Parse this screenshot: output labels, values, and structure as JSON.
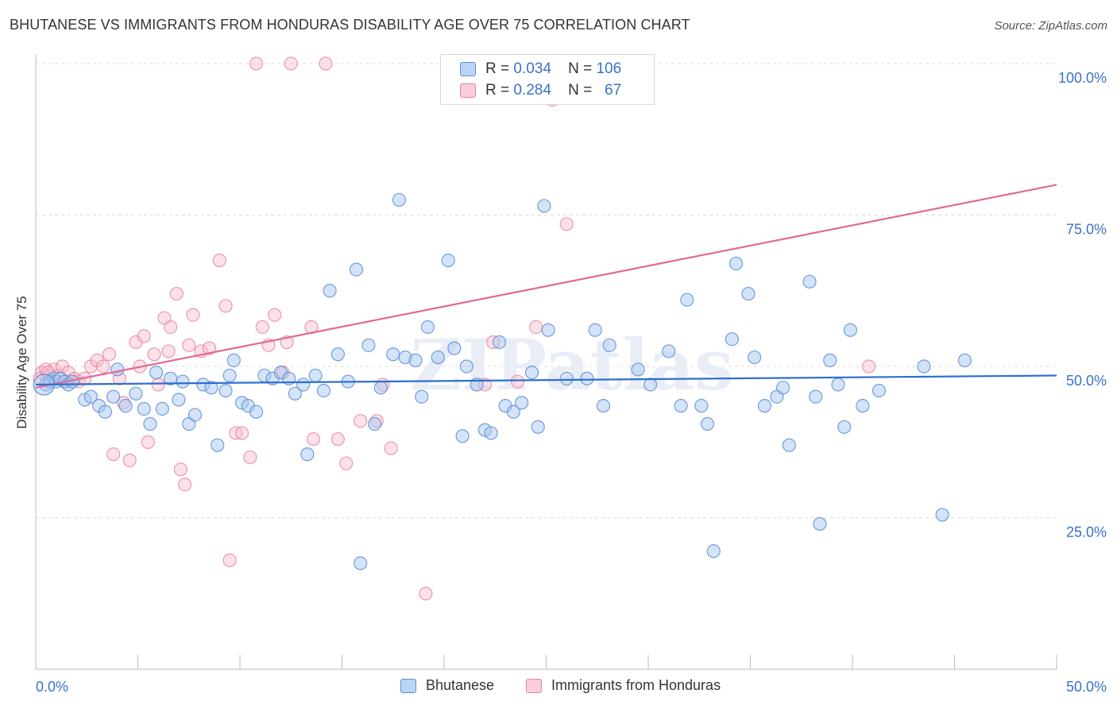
{
  "header": {
    "title": "BHUTANESE VS IMMIGRANTS FROM HONDURAS DISABILITY AGE OVER 75 CORRELATION CHART",
    "source": "Source: ZipAtlas.com"
  },
  "watermark": "ZIPatlas",
  "stats_legend": {
    "rows": [
      {
        "r_label": "R =",
        "r_value": "0.034",
        "n_label": "N =",
        "n_value": "106"
      },
      {
        "r_label": "R =",
        "r_value": "0.284",
        "n_label": "N =",
        "n_value": "67"
      }
    ]
  },
  "colors": {
    "blue_fill": "#a9c8ef",
    "blue_stroke": "#5b8fd6",
    "blue_line": "#2f6fce",
    "pink_fill": "#f6bccd",
    "pink_stroke": "#e7829f",
    "pink_line": "#e06a95",
    "axis_label_blue": "#3a72c8",
    "grid": "#dcdcdc"
  },
  "chart_data": {
    "type": "scatter",
    "title": "BHUTANESE VS IMMIGRANTS FROM HONDURAS DISABILITY AGE OVER 75 CORRELATION CHART",
    "xlabel": "",
    "ylabel": "Disability Age Over 75",
    "xlim": [
      0,
      50
    ],
    "ylim": [
      0,
      100
    ],
    "x_tick_labels": [
      "0.0%",
      "50.0%"
    ],
    "y_tick_labels": [
      "25.0%",
      "50.0%",
      "75.0%",
      "100.0%"
    ],
    "y_ticks": [
      25,
      50,
      75,
      100
    ],
    "grid": true,
    "legend_position": "bottom",
    "series": [
      {
        "name": "Bhutanese",
        "color": "#5b8fd6",
        "trend": {
          "x": [
            0,
            50
          ],
          "y": [
            47.0,
            48.5
          ]
        },
        "points": [
          [
            0.5,
            47.0
          ],
          [
            0.7,
            47.5
          ],
          [
            0.9,
            48.0
          ],
          [
            1.0,
            47.5
          ],
          [
            1.2,
            48.0
          ],
          [
            1.4,
            47.5
          ],
          [
            1.6,
            47.0
          ],
          [
            1.8,
            47.5
          ],
          [
            2.4,
            44.5
          ],
          [
            2.7,
            45.0
          ],
          [
            3.1,
            43.5
          ],
          [
            3.4,
            42.5
          ],
          [
            3.8,
            45.0
          ],
          [
            4.0,
            49.5
          ],
          [
            4.4,
            43.5
          ],
          [
            4.9,
            45.5
          ],
          [
            5.3,
            43.0
          ],
          [
            5.6,
            40.5
          ],
          [
            5.9,
            49.0
          ],
          [
            6.2,
            43.0
          ],
          [
            6.6,
            48.0
          ],
          [
            7.0,
            44.5
          ],
          [
            7.2,
            47.5
          ],
          [
            7.5,
            40.5
          ],
          [
            7.8,
            42.0
          ],
          [
            8.2,
            47.0
          ],
          [
            8.6,
            46.5
          ],
          [
            8.9,
            37.0
          ],
          [
            9.3,
            46.0
          ],
          [
            9.5,
            48.5
          ],
          [
            9.7,
            51.0
          ],
          [
            10.1,
            44.0
          ],
          [
            10.4,
            43.5
          ],
          [
            10.8,
            42.5
          ],
          [
            11.2,
            48.5
          ],
          [
            11.6,
            48.0
          ],
          [
            12.0,
            49.0
          ],
          [
            12.4,
            48.0
          ],
          [
            12.7,
            45.5
          ],
          [
            13.1,
            47.0
          ],
          [
            13.3,
            35.5
          ],
          [
            13.7,
            48.5
          ],
          [
            14.1,
            46.0
          ],
          [
            14.4,
            62.5
          ],
          [
            14.8,
            52.0
          ],
          [
            15.3,
            47.5
          ],
          [
            15.7,
            66.0
          ],
          [
            15.9,
            17.5
          ],
          [
            16.3,
            53.5
          ],
          [
            16.6,
            40.5
          ],
          [
            16.9,
            46.5
          ],
          [
            17.5,
            52.0
          ],
          [
            17.8,
            77.5
          ],
          [
            18.1,
            51.5
          ],
          [
            18.6,
            51.0
          ],
          [
            18.9,
            45.0
          ],
          [
            19.2,
            56.5
          ],
          [
            19.7,
            51.5
          ],
          [
            20.2,
            67.5
          ],
          [
            20.5,
            53.0
          ],
          [
            20.9,
            38.5
          ],
          [
            21.1,
            50.0
          ],
          [
            21.6,
            47.0
          ],
          [
            22.0,
            39.5
          ],
          [
            22.3,
            39.0
          ],
          [
            22.7,
            54.0
          ],
          [
            23.0,
            43.5
          ],
          [
            23.4,
            42.5
          ],
          [
            23.8,
            44.0
          ],
          [
            24.3,
            49.0
          ],
          [
            24.6,
            40.0
          ],
          [
            24.9,
            76.5
          ],
          [
            25.1,
            56.0
          ],
          [
            26.0,
            48.0
          ],
          [
            27.0,
            48.0
          ],
          [
            27.4,
            56.0
          ],
          [
            27.8,
            43.5
          ],
          [
            28.1,
            53.5
          ],
          [
            29.5,
            49.5
          ],
          [
            30.1,
            47.0
          ],
          [
            31.0,
            52.5
          ],
          [
            31.6,
            43.5
          ],
          [
            31.9,
            61.0
          ],
          [
            32.6,
            43.5
          ],
          [
            32.9,
            40.5
          ],
          [
            33.2,
            19.5
          ],
          [
            34.1,
            54.5
          ],
          [
            34.3,
            67.0
          ],
          [
            34.9,
            62.0
          ],
          [
            35.2,
            51.5
          ],
          [
            35.7,
            43.5
          ],
          [
            36.3,
            45.0
          ],
          [
            36.6,
            46.5
          ],
          [
            36.9,
            37.0
          ],
          [
            37.9,
            64.0
          ],
          [
            38.2,
            45.0
          ],
          [
            38.4,
            24.0
          ],
          [
            38.9,
            51.0
          ],
          [
            39.3,
            47.0
          ],
          [
            39.6,
            40.0
          ],
          [
            39.9,
            56.0
          ],
          [
            40.5,
            43.5
          ],
          [
            41.3,
            46.0
          ],
          [
            43.5,
            50.0
          ],
          [
            44.4,
            25.5
          ],
          [
            45.5,
            51.0
          ]
        ]
      },
      {
        "name": "Immigrants from Honduras",
        "color": "#e7829f",
        "trend": {
          "x": [
            0,
            50
          ],
          "y": [
            46.5,
            80.0
          ]
        },
        "points": [
          [
            0.3,
            49.0
          ],
          [
            0.5,
            49.5
          ],
          [
            0.7,
            48.5
          ],
          [
            0.9,
            49.5
          ],
          [
            1.1,
            48.5
          ],
          [
            1.3,
            50.0
          ],
          [
            1.6,
            49.0
          ],
          [
            1.9,
            48.0
          ],
          [
            2.1,
            47.5
          ],
          [
            2.4,
            48.0
          ],
          [
            2.7,
            50.0
          ],
          [
            3.0,
            51.0
          ],
          [
            3.3,
            50.0
          ],
          [
            3.6,
            52.0
          ],
          [
            3.8,
            35.5
          ],
          [
            4.1,
            48.0
          ],
          [
            4.3,
            44.0
          ],
          [
            4.6,
            34.5
          ],
          [
            4.9,
            54.0
          ],
          [
            5.1,
            50.0
          ],
          [
            5.3,
            55.0
          ],
          [
            5.5,
            37.5
          ],
          [
            5.8,
            52.0
          ],
          [
            6.0,
            47.0
          ],
          [
            6.3,
            58.0
          ],
          [
            6.5,
            52.5
          ],
          [
            6.6,
            56.5
          ],
          [
            6.9,
            62.0
          ],
          [
            7.1,
            33.0
          ],
          [
            7.3,
            30.5
          ],
          [
            7.5,
            53.5
          ],
          [
            7.7,
            58.5
          ],
          [
            8.1,
            52.5
          ],
          [
            8.5,
            53.0
          ],
          [
            9.0,
            67.5
          ],
          [
            9.3,
            60.0
          ],
          [
            9.5,
            18.0
          ],
          [
            9.8,
            39.0
          ],
          [
            10.1,
            39.0
          ],
          [
            10.5,
            35.0
          ],
          [
            10.8,
            100.0
          ],
          [
            11.1,
            56.5
          ],
          [
            11.4,
            53.5
          ],
          [
            11.7,
            58.5
          ],
          [
            12.1,
            49.0
          ],
          [
            12.3,
            54.0
          ],
          [
            12.5,
            100.0
          ],
          [
            13.5,
            56.5
          ],
          [
            13.6,
            38.0
          ],
          [
            14.2,
            100.0
          ],
          [
            14.8,
            38.0
          ],
          [
            15.2,
            34.0
          ],
          [
            15.9,
            41.0
          ],
          [
            16.7,
            41.0
          ],
          [
            17.0,
            47.0
          ],
          [
            17.4,
            36.5
          ],
          [
            19.1,
            12.5
          ],
          [
            22.0,
            47.0
          ],
          [
            22.4,
            54.0
          ],
          [
            23.6,
            47.5
          ],
          [
            24.5,
            56.5
          ],
          [
            25.3,
            94.0
          ],
          [
            26.0,
            73.5
          ],
          [
            40.8,
            50.0
          ],
          [
            0.2,
            48.0
          ],
          [
            0.6,
            49.0
          ],
          [
            1.5,
            47.5
          ]
        ]
      }
    ]
  },
  "bottom_legend": {
    "items": [
      {
        "label": "Bhutanese"
      },
      {
        "label": "Immigrants from Honduras"
      }
    ]
  }
}
